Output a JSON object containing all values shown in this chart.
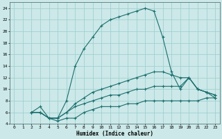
{
  "xlabel": "Humidex (Indice chaleur)",
  "ylabel": "",
  "xlim": [
    -0.5,
    23.5
  ],
  "ylim": [
    4,
    25
  ],
  "xticks": [
    0,
    1,
    2,
    3,
    4,
    5,
    6,
    7,
    8,
    9,
    10,
    11,
    12,
    13,
    14,
    15,
    16,
    17,
    18,
    19,
    20,
    21,
    22,
    23
  ],
  "yticks": [
    4,
    6,
    8,
    10,
    12,
    14,
    16,
    18,
    20,
    22,
    24
  ],
  "bg_color": "#cce8e8",
  "grid_color": "#99cccc",
  "line_color": "#1a6e6e",
  "line1_x": [
    2,
    3,
    4,
    5,
    6,
    7,
    8,
    9,
    10,
    11,
    12,
    13,
    14,
    15,
    16,
    17,
    18,
    19,
    20,
    21,
    22,
    23
  ],
  "line1_y": [
    6,
    7,
    5,
    5,
    8,
    14,
    17,
    19,
    21,
    22,
    22.5,
    23,
    23.5,
    24,
    23.5,
    19,
    13,
    10,
    12,
    10,
    9.5,
    9
  ],
  "line2_x": [
    2,
    3,
    4,
    5,
    6,
    7,
    8,
    9,
    10,
    11,
    12,
    13,
    14,
    15,
    16,
    17,
    18,
    19,
    20,
    21,
    22,
    23
  ],
  "line2_y": [
    6,
    6,
    5,
    5,
    6,
    7.5,
    8.5,
    9.5,
    10,
    10.5,
    11,
    11.5,
    12,
    12.5,
    13,
    13,
    12.5,
    12,
    12,
    10,
    9.5,
    9
  ],
  "line3_x": [
    2,
    3,
    4,
    5,
    6,
    7,
    8,
    9,
    10,
    11,
    12,
    13,
    14,
    15,
    16,
    17,
    18,
    19,
    20,
    21,
    22,
    23
  ],
  "line3_y": [
    6,
    6,
    5,
    5,
    6,
    7,
    7.5,
    8,
    8.5,
    9,
    9,
    9.5,
    10,
    10,
    10.5,
    10.5,
    10.5,
    10.5,
    12,
    10,
    9.5,
    8.5
  ],
  "line4_x": [
    2,
    3,
    4,
    5,
    6,
    7,
    8,
    9,
    10,
    11,
    12,
    13,
    14,
    15,
    16,
    17,
    18,
    19,
    20,
    21,
    22,
    23
  ],
  "line4_y": [
    6,
    6,
    5,
    4.5,
    5,
    5,
    6,
    6.5,
    7,
    7,
    7,
    7.5,
    7.5,
    8,
    8,
    8,
    8,
    8,
    8,
    8,
    8.5,
    8.5
  ]
}
